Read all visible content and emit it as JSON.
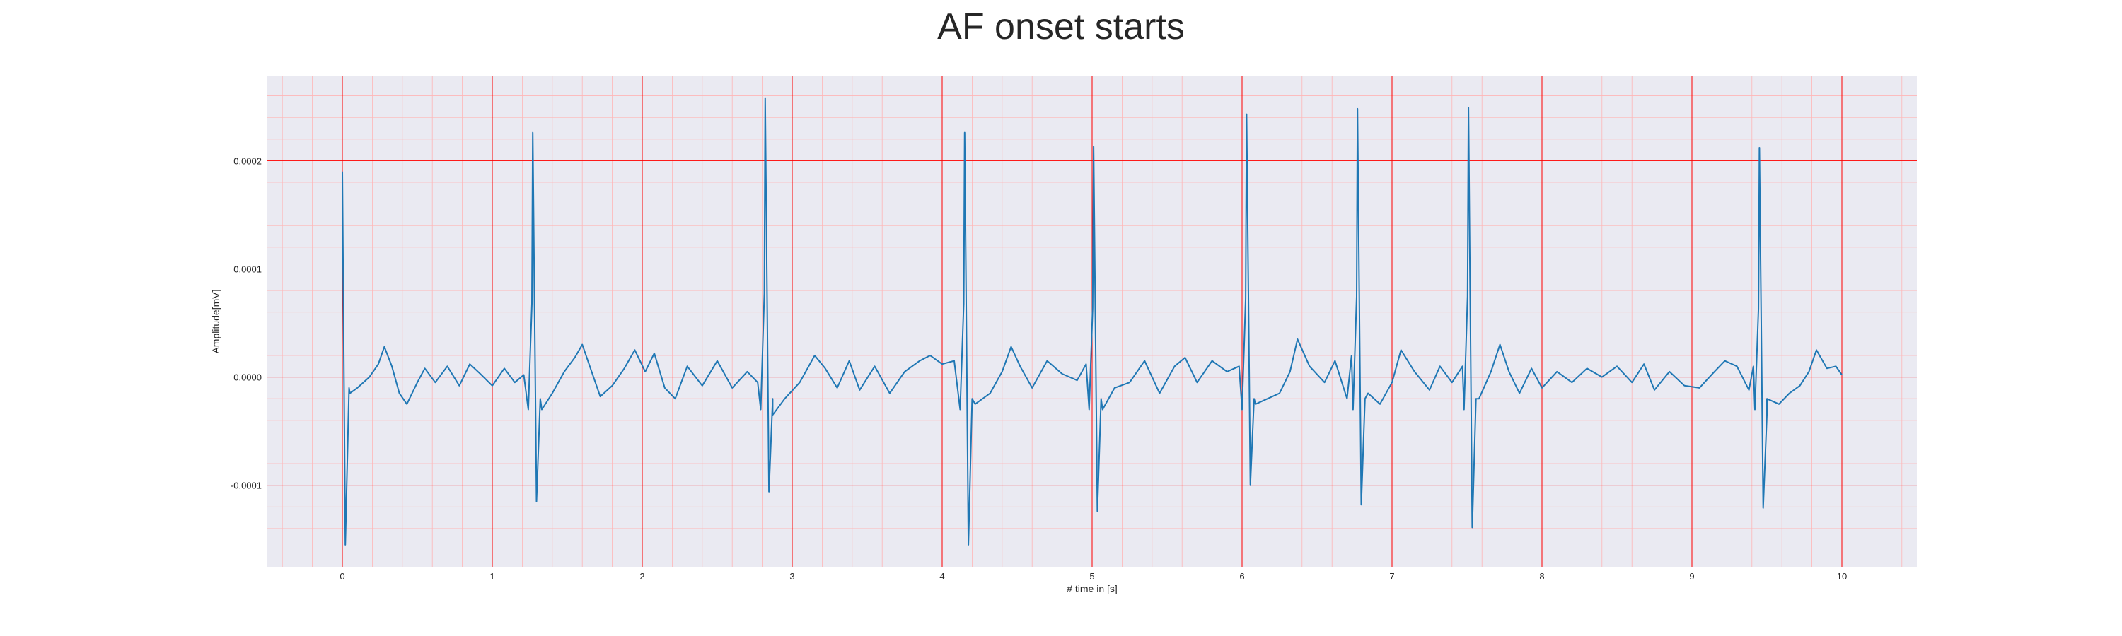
{
  "chart_data": {
    "type": "line",
    "title": "AF onset starts",
    "xlabel": "# time in [s]",
    "ylabel": "Amplitude[mV]",
    "xlim": [
      -0.5,
      10.5
    ],
    "ylim": [
      -0.000176,
      0.000278
    ],
    "x_ticks": [
      0,
      1,
      2,
      3,
      4,
      5,
      6,
      7,
      8,
      9,
      10
    ],
    "x_tick_labels": [
      "0",
      "1",
      "2",
      "3",
      "4",
      "5",
      "6",
      "7",
      "8",
      "9",
      "10"
    ],
    "y_ticks": [
      -0.0001,
      0.0,
      0.0001,
      0.0002
    ],
    "y_tick_labels": [
      "-0.0001",
      "0.0000",
      "0.0001",
      "0.0002"
    ],
    "grid": true,
    "colors": {
      "line": "#1f77b4",
      "plot_background": "#eaeaf2",
      "major_grid": "#ff0000",
      "minor_grid": "#ffb6b6"
    },
    "series": [
      {
        "values_unit": "mV",
        "r_peaks": [
          {
            "t": 0.0,
            "peak": 0.00019,
            "trough": -0.000155
          },
          {
            "t": 1.27,
            "peak": 0.000226,
            "trough": -0.000115
          },
          {
            "t": 2.82,
            "peak": 0.000258,
            "trough": -0.000106
          },
          {
            "t": 4.15,
            "peak": 0.000226,
            "trough": -0.000155
          },
          {
            "t": 5.01,
            "peak": 0.000213,
            "trough": -0.000124
          },
          {
            "t": 6.03,
            "peak": 0.000243,
            "trough": -0.0001
          },
          {
            "t": 6.77,
            "peak": 0.000248,
            "trough": -0.000118
          },
          {
            "t": 7.51,
            "peak": 0.000249,
            "trough": -0.000139
          },
          {
            "t": 9.45,
            "peak": 0.000212,
            "trough": -0.000121
          }
        ],
        "baseline_points": [
          [
            0.05,
            -1.5e-05
          ],
          [
            0.1,
            -1e-05
          ],
          [
            0.18,
            0.0
          ],
          [
            0.24,
            1.2e-05
          ],
          [
            0.28,
            2.8e-05
          ],
          [
            0.33,
            1e-05
          ],
          [
            0.38,
            -1.5e-05
          ],
          [
            0.43,
            -2.5e-05
          ],
          [
            0.5,
            -5e-06
          ],
          [
            0.55,
            8e-06
          ],
          [
            0.62,
            -5e-06
          ],
          [
            0.7,
            1e-05
          ],
          [
            0.78,
            -8e-06
          ],
          [
            0.85,
            1.2e-05
          ],
          [
            0.92,
            3e-06
          ],
          [
            1.0,
            -8e-06
          ],
          [
            1.08,
            8e-06
          ],
          [
            1.15,
            -5e-06
          ],
          [
            1.21,
            2e-06
          ],
          [
            1.33,
            -3e-05
          ],
          [
            1.4,
            -1.5e-05
          ],
          [
            1.48,
            5e-06
          ],
          [
            1.55,
            1.8e-05
          ],
          [
            1.6,
            3e-05
          ],
          [
            1.65,
            1e-05
          ],
          [
            1.72,
            -1.8e-05
          ],
          [
            1.8,
            -8e-06
          ],
          [
            1.88,
            8e-06
          ],
          [
            1.95,
            2.5e-05
          ],
          [
            2.02,
            5e-06
          ],
          [
            2.08,
            2.2e-05
          ],
          [
            2.15,
            -1e-05
          ],
          [
            2.22,
            -2e-05
          ],
          [
            2.3,
            1e-05
          ],
          [
            2.4,
            -8e-06
          ],
          [
            2.5,
            1.5e-05
          ],
          [
            2.6,
            -1e-05
          ],
          [
            2.7,
            5e-06
          ],
          [
            2.77,
            -5e-06
          ],
          [
            2.87,
            -3.5e-05
          ],
          [
            2.95,
            -2e-05
          ],
          [
            3.05,
            -5e-06
          ],
          [
            3.15,
            2e-05
          ],
          [
            3.22,
            8e-06
          ],
          [
            3.3,
            -1e-05
          ],
          [
            3.38,
            1.5e-05
          ],
          [
            3.45,
            -1.2e-05
          ],
          [
            3.55,
            1e-05
          ],
          [
            3.65,
            -1.5e-05
          ],
          [
            3.75,
            5e-06
          ],
          [
            3.85,
            1.5e-05
          ],
          [
            3.92,
            2e-05
          ],
          [
            4.0,
            1.2e-05
          ],
          [
            4.08,
            1.5e-05
          ],
          [
            4.22,
            -2.5e-05
          ],
          [
            4.32,
            -1.5e-05
          ],
          [
            4.4,
            5e-06
          ],
          [
            4.46,
            2.8e-05
          ],
          [
            4.52,
            1e-05
          ],
          [
            4.6,
            -1e-05
          ],
          [
            4.7,
            1.5e-05
          ],
          [
            4.8,
            3e-06
          ],
          [
            4.9,
            -3e-06
          ],
          [
            4.96,
            1.2e-05
          ],
          [
            5.07,
            -3e-05
          ],
          [
            5.15,
            -1e-05
          ],
          [
            5.25,
            -5e-06
          ],
          [
            5.35,
            1.5e-05
          ],
          [
            5.45,
            -1.5e-05
          ],
          [
            5.55,
            1e-05
          ],
          [
            5.62,
            1.8e-05
          ],
          [
            5.7,
            -5e-06
          ],
          [
            5.8,
            1.5e-05
          ],
          [
            5.9,
            5e-06
          ],
          [
            5.98,
            1e-05
          ],
          [
            6.09,
            -2.5e-05
          ],
          [
            6.17,
            -2e-05
          ],
          [
            6.25,
            -1.5e-05
          ],
          [
            6.32,
            5e-06
          ],
          [
            6.37,
            3.5e-05
          ],
          [
            6.45,
            1e-05
          ],
          [
            6.55,
            -5e-06
          ],
          [
            6.62,
            1.5e-05
          ],
          [
            6.7,
            -2e-05
          ],
          [
            6.73,
            2e-05
          ],
          [
            6.84,
            -1.5e-05
          ],
          [
            6.92,
            -2.5e-05
          ],
          [
            7.0,
            -5e-06
          ],
          [
            7.06,
            2.5e-05
          ],
          [
            7.15,
            5e-06
          ],
          [
            7.25,
            -1.2e-05
          ],
          [
            7.32,
            1e-05
          ],
          [
            7.4,
            -5e-06
          ],
          [
            7.47,
            1e-05
          ],
          [
            7.58,
            -2e-05
          ],
          [
            7.66,
            5e-06
          ],
          [
            7.72,
            3e-05
          ],
          [
            7.78,
            5e-06
          ],
          [
            7.85,
            -1.5e-05
          ],
          [
            7.93,
            8e-06
          ],
          [
            8.0,
            -1e-05
          ],
          [
            8.1,
            5e-06
          ],
          [
            8.2,
            -5e-06
          ],
          [
            8.3,
            8e-06
          ],
          [
            8.4,
            0.0
          ],
          [
            8.5,
            1e-05
          ],
          [
            8.6,
            -5e-06
          ],
          [
            8.68,
            1.2e-05
          ],
          [
            8.75,
            -1.2e-05
          ],
          [
            8.85,
            5e-06
          ],
          [
            8.95,
            -8e-06
          ],
          [
            9.05,
            -1e-05
          ],
          [
            9.15,
            5e-06
          ],
          [
            9.22,
            1.5e-05
          ],
          [
            9.3,
            1e-05
          ],
          [
            9.38,
            -1.2e-05
          ],
          [
            9.41,
            1e-05
          ],
          [
            9.5,
            -3.5e-05
          ],
          [
            9.58,
            -2.5e-05
          ],
          [
            9.65,
            -1.5e-05
          ],
          [
            9.72,
            -8e-06
          ],
          [
            9.78,
            5e-06
          ],
          [
            9.83,
            2.5e-05
          ],
          [
            9.9,
            8e-06
          ],
          [
            9.96,
            1e-05
          ],
          [
            10.0,
            2e-06
          ]
        ]
      }
    ]
  }
}
